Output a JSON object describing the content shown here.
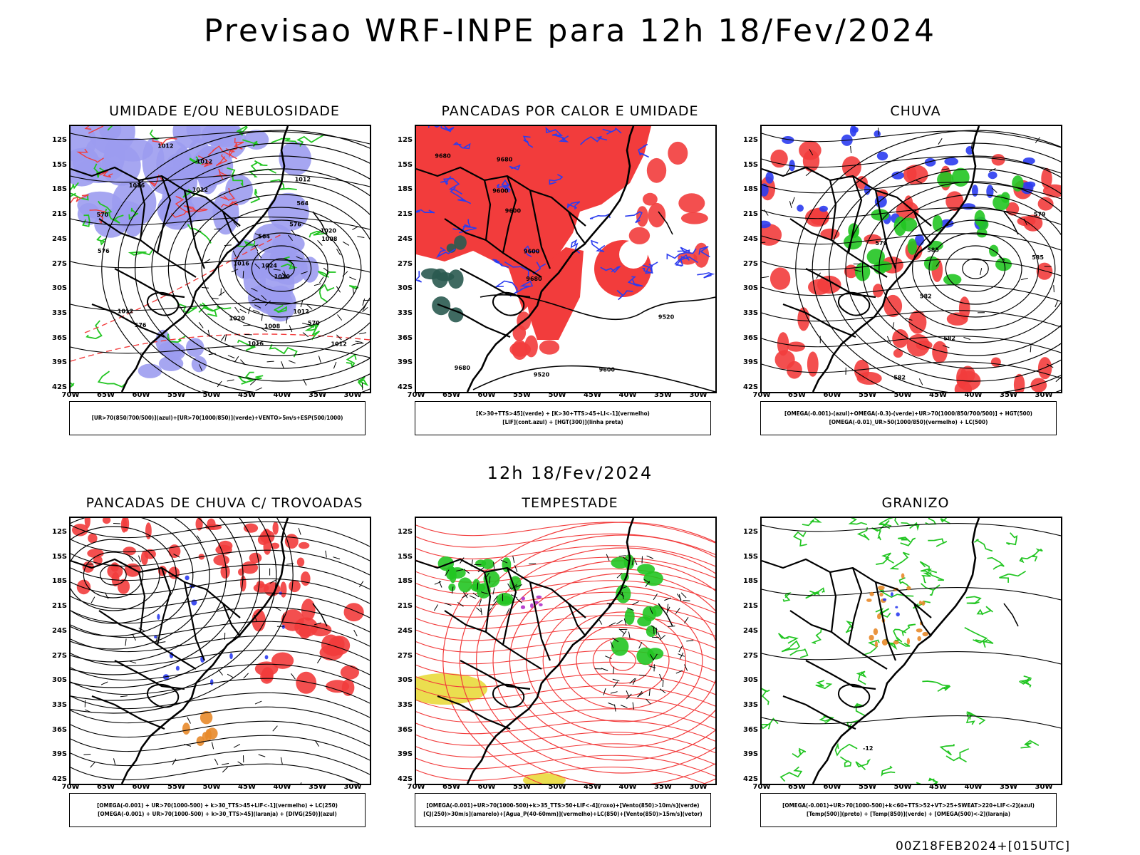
{
  "title": "Previsao WRF-INPE  para 12h 18/Fev/2024",
  "subtitle": "12h 18/Fev/2024",
  "footer": "00Z18FEB2024+[015UTC]",
  "lat_labels": [
    "12S",
    "15S",
    "18S",
    "21S",
    "24S",
    "27S",
    "30S",
    "33S",
    "36S",
    "39S",
    "42S"
  ],
  "lon_labels": [
    "70W",
    "65W",
    "60W",
    "55W",
    "50W",
    "45W",
    "40W",
    "35W",
    "30W"
  ],
  "colors": {
    "red": "#f23c3c",
    "blue": "#2b3cf0",
    "green": "#22c522",
    "lavender": "#9c9cf0",
    "yellow": "#e8d830",
    "orange": "#e88a2a",
    "purple": "#b030c8",
    "dark": "#2a5a50"
  },
  "panels": [
    {
      "title": "UMIDADE E/OU NEBULOSIDADE",
      "legend": [
        "[UR>70(850/700/500)](azul)+[UR>70(1000/850)](verde)+VENTO>5m/s+ESP(500/1000)"
      ],
      "labels": [
        "1012",
        "1012",
        "1020",
        "1016",
        "1008",
        "1012",
        "1012",
        "1016",
        "1020",
        "1024",
        "1012",
        "1012",
        "1016",
        "1020",
        "1008",
        "1012",
        "576",
        "576",
        "570",
        "570",
        "576",
        "564",
        "564"
      ]
    },
    {
      "title": "PANCADAS POR CALOR E UMIDADE",
      "legend": [
        "[K>30+TTS>45](verde) + [K>30+TTS>45+LI<-1](vermelho)",
        "[LIF](cont.azul) + [HGT(300)](linha preta)"
      ],
      "labels": [
        "9680",
        "9680",
        "9680",
        "9680",
        "9600",
        "9600",
        "9600",
        "9600",
        "9520",
        "9520"
      ]
    },
    {
      "title": "CHUVA",
      "legend": [
        "[OMEGA(-0.001)-(azul)+OMEGA(-0.3)-(verde)+UR>70(1000/850/700/500)] + HGT(500)",
        "[OMEGA(-0.01)_UR>50(1000/850)(vermelho) + LC(500)"
      ],
      "labels": [
        "585",
        "585",
        "582",
        "582",
        "579",
        "579",
        "582"
      ]
    },
    {
      "title": "PANCADAS DE CHUVA C/ TROVOADAS",
      "legend": [
        "[OMEGA(-0.001) + UR>70(1000-500) + k>30_TTS>45+LIF<-1](vermelho) + LC(250)",
        "[OMEGA(-0.001) + UR>70(1000-500) + k>30_TTS>45](laranja) + [DIVG(250)](azul)"
      ],
      "labels": []
    },
    {
      "title": "TEMPESTADE",
      "legend": [
        "[OMEGA(-0.001)+UR>70(1000-500)+k>35_TTS>50+LIF<-4](roxo)+[Vento(850)>10m/s](verde)",
        "[CJ(250)>30m/s](amarelo)+[Agua_P(40-60mm)](vermelho)+LC(850)+[Vento(850)>15m/s](vetor)"
      ],
      "labels": []
    },
    {
      "title": "GRANIZO",
      "legend": [
        "[OMEGA(-0.001)+UR>70(1000-500)+k<60+TTS>52+VT>25+SWEAT>220+LIF<-2](azul)",
        "[Temp(500)](preto) + [Temp(850)](verde) + [OMEGA(500)<-2](laranja)"
      ],
      "labels": [
        "-12"
      ]
    }
  ]
}
